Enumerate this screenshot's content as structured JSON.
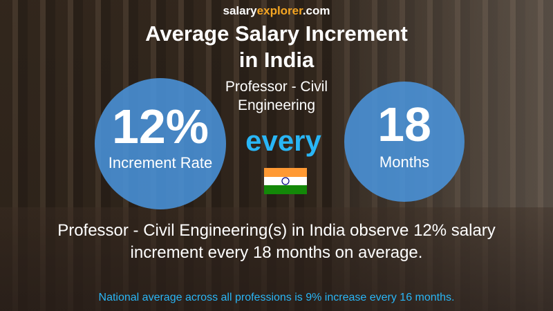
{
  "brand": {
    "parts": [
      "salary",
      "explorer",
      ".com"
    ]
  },
  "title": [
    "Average Salary Increment",
    "in India"
  ],
  "subtitle": [
    "Professor - Civil",
    "Engineering"
  ],
  "left": {
    "value": "12%",
    "label": "Increment Rate"
  },
  "middle": "every",
  "right": {
    "value": "18",
    "label": "Months"
  },
  "description": [
    "Professor - Civil Engineering(s) in India observe 12% salary",
    "increment every 18 months on average."
  ],
  "footer": "National average across all professions is 9% increase every 16 months."
}
